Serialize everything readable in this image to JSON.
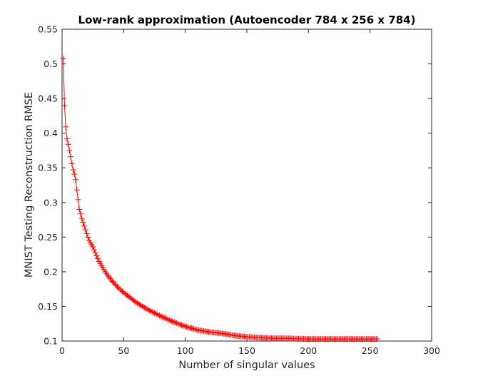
{
  "chart_data": {
    "type": "line",
    "title": "Low-rank approximation (Autoencoder 784 x 256 x 784)",
    "xlabel": "Number of singular values",
    "ylabel": "MNIST Testing Reconstruction RMSE",
    "xlim": [
      0,
      300
    ],
    "ylim": [
      0.1,
      0.55
    ],
    "xticks": [
      0,
      50,
      100,
      150,
      200,
      250,
      300
    ],
    "yticks": [
      0.1,
      0.15,
      0.2,
      0.25,
      0.3,
      0.35,
      0.4,
      0.45,
      0.5,
      0.55
    ],
    "xtick_labels": [
      "0",
      "50",
      "100",
      "150",
      "200",
      "250",
      "300"
    ],
    "ytick_labels": [
      "0.1",
      "0.15",
      "0.2",
      "0.25",
      "0.3",
      "0.35",
      "0.4",
      "0.45",
      "0.5",
      "0.55"
    ],
    "grid": false,
    "marker": "+",
    "series": [
      {
        "name": "RMSE",
        "color": "#ff0000",
        "curve_model": "piecewise-linear interpolation over anchor points, evaluated at x = 1..256",
        "anchors_x": [
          1,
          2,
          3,
          4,
          5,
          6,
          7,
          8,
          9,
          10,
          11,
          12,
          14,
          16,
          18,
          20,
          22,
          25,
          28,
          30,
          35,
          40,
          45,
          50,
          55,
          60,
          70,
          80,
          90,
          100,
          110,
          120,
          130,
          140,
          150,
          160,
          170,
          180,
          200,
          220,
          240,
          256
        ],
        "anchors_y": [
          0.508,
          0.44,
          0.409,
          0.392,
          0.384,
          0.375,
          0.366,
          0.356,
          0.347,
          0.341,
          0.333,
          0.318,
          0.29,
          0.277,
          0.266,
          0.255,
          0.245,
          0.236,
          0.223,
          0.215,
          0.2,
          0.188,
          0.178,
          0.17,
          0.163,
          0.156,
          0.145,
          0.136,
          0.128,
          0.121,
          0.116,
          0.113,
          0.111,
          0.108,
          0.106,
          0.105,
          0.104,
          0.104,
          0.103,
          0.103,
          0.103,
          0.103
        ]
      }
    ]
  }
}
